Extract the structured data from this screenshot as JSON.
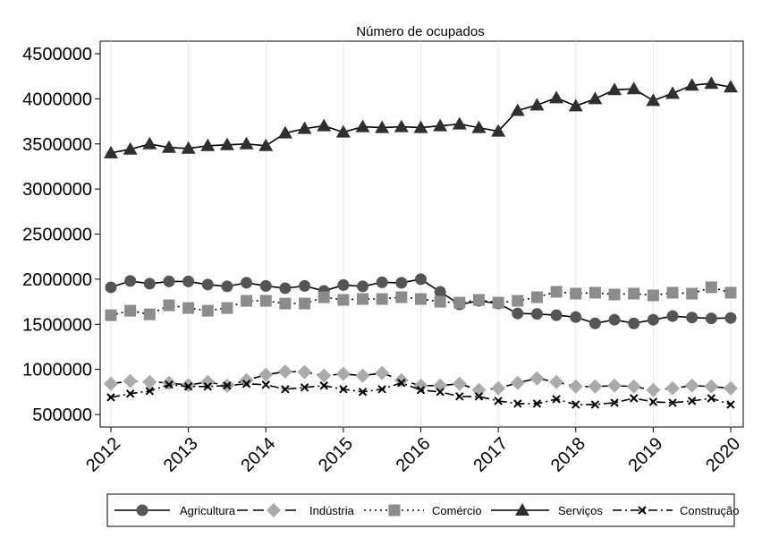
{
  "chart_data": {
    "type": "line",
    "title": "Número de ocupados",
    "xlabel": "",
    "ylabel": "",
    "xlim": [
      2012,
      2020
    ],
    "ylim": [
      450000,
      4500000
    ],
    "x_ticks": [
      "2012",
      "2013",
      "2014",
      "2015",
      "2016",
      "2017",
      "2018",
      "2019",
      "2020"
    ],
    "y_ticks": [
      "500000",
      "1000000",
      "1500000",
      "2000000",
      "2500000",
      "3000000",
      "3500000",
      "4000000",
      "4500000"
    ],
    "grid": "vertical",
    "legend_position": "bottom",
    "x": [
      2012.0,
      2012.25,
      2012.5,
      2012.75,
      2013.0,
      2013.25,
      2013.5,
      2013.75,
      2014.0,
      2014.25,
      2014.5,
      2014.75,
      2015.0,
      2015.25,
      2015.5,
      2015.75,
      2016.0,
      2016.25,
      2016.5,
      2016.75,
      2017.0,
      2017.25,
      2017.5,
      2017.75,
      2018.0,
      2018.25,
      2018.5,
      2018.75,
      2019.0,
      2019.25,
      2019.5,
      2019.75,
      2020.0
    ],
    "series": [
      {
        "name": "Agricultura",
        "marker": "circle",
        "dash": "solid",
        "color": "#555555",
        "values": [
          1910000,
          1980000,
          1950000,
          1975000,
          1975000,
          1940000,
          1920000,
          1960000,
          1925000,
          1900000,
          1925000,
          1870000,
          1935000,
          1920000,
          1965000,
          1960000,
          2000000,
          1860000,
          1720000,
          1760000,
          1730000,
          1620000,
          1615000,
          1600000,
          1580000,
          1510000,
          1550000,
          1510000,
          1550000,
          1590000,
          1575000,
          1565000,
          1570000
        ]
      },
      {
        "name": "Indústria",
        "marker": "diamond",
        "dash": "longdash",
        "color": "#aaaaaa",
        "values": [
          840000,
          870000,
          860000,
          850000,
          825000,
          860000,
          820000,
          880000,
          940000,
          975000,
          970000,
          930000,
          950000,
          930000,
          960000,
          880000,
          820000,
          820000,
          840000,
          770000,
          790000,
          850000,
          900000,
          860000,
          810000,
          810000,
          820000,
          810000,
          770000,
          790000,
          820000,
          810000,
          790000
        ]
      },
      {
        "name": "Comércio",
        "marker": "square",
        "dash": "dotted",
        "color": "#8c8c8c",
        "values": [
          1600000,
          1650000,
          1610000,
          1710000,
          1680000,
          1650000,
          1680000,
          1760000,
          1760000,
          1730000,
          1730000,
          1800000,
          1770000,
          1780000,
          1780000,
          1800000,
          1780000,
          1750000,
          1740000,
          1770000,
          1740000,
          1760000,
          1800000,
          1860000,
          1840000,
          1850000,
          1830000,
          1840000,
          1820000,
          1850000,
          1840000,
          1910000,
          1850000
        ]
      },
      {
        "name": "Serviços",
        "marker": "triangle",
        "dash": "solid",
        "color": "#2f2f2f",
        "values": [
          3400000,
          3440000,
          3500000,
          3460000,
          3450000,
          3480000,
          3490000,
          3500000,
          3480000,
          3620000,
          3670000,
          3700000,
          3630000,
          3690000,
          3680000,
          3690000,
          3680000,
          3700000,
          3720000,
          3680000,
          3640000,
          3870000,
          3930000,
          4010000,
          3920000,
          4000000,
          4100000,
          4110000,
          3980000,
          4060000,
          4150000,
          4170000,
          4130000
        ]
      },
      {
        "name": "Construção",
        "marker": "x",
        "dash": "dashdot",
        "color": "#000000",
        "values": [
          690000,
          730000,
          760000,
          830000,
          810000,
          810000,
          820000,
          840000,
          830000,
          780000,
          800000,
          820000,
          780000,
          750000,
          780000,
          850000,
          770000,
          750000,
          700000,
          700000,
          650000,
          620000,
          620000,
          670000,
          610000,
          610000,
          630000,
          680000,
          640000,
          630000,
          650000,
          680000,
          610000
        ]
      }
    ]
  }
}
